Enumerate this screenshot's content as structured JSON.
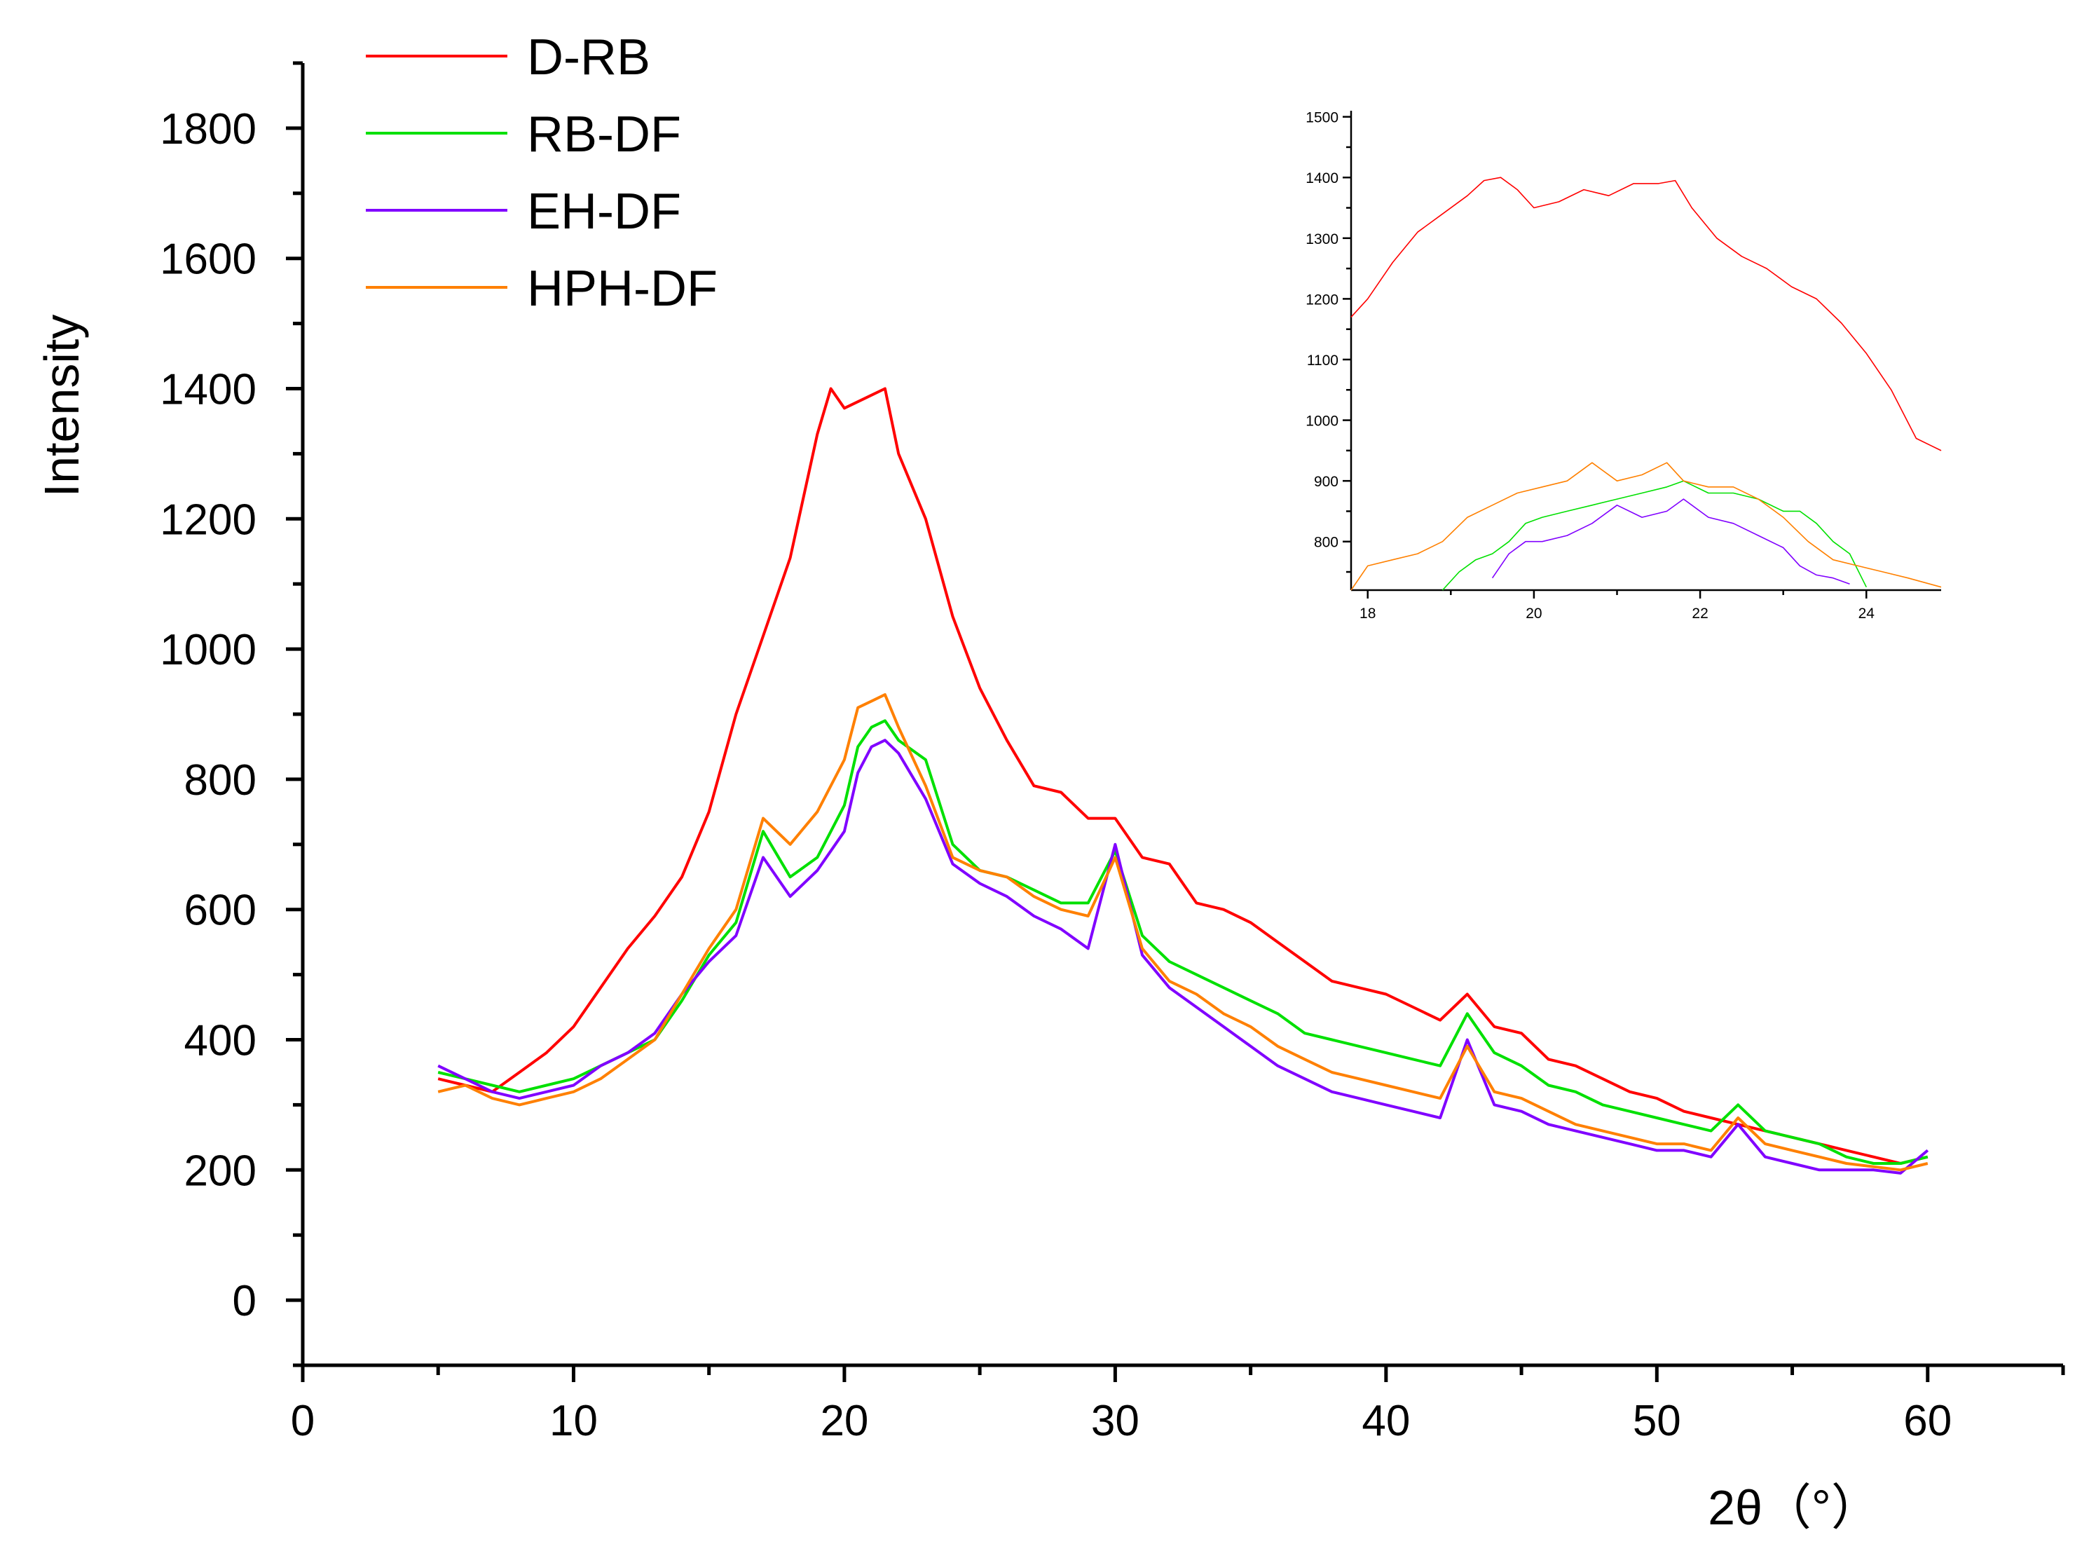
{
  "chart_data": [
    {
      "type": "line",
      "title": "",
      "xlabel": "2θ（°）",
      "ylabel": "Intensity",
      "xlim": [
        0,
        65
      ],
      "ylim": [
        -100,
        1900
      ],
      "x_ticks": [
        0,
        10,
        20,
        30,
        40,
        50,
        60
      ],
      "y_ticks": [
        0,
        200,
        400,
        600,
        800,
        1000,
        1200,
        1400,
        1600,
        1800
      ],
      "grid": false,
      "legend": "top-left",
      "series": [
        {
          "name": "D-RB",
          "color": "#ff0000",
          "x": [
            5,
            6,
            7,
            8,
            9,
            10,
            11,
            12,
            13,
            14,
            15,
            16,
            17,
            18,
            19,
            19.5,
            20,
            21,
            21.5,
            22,
            23,
            24,
            25,
            26,
            27,
            28,
            29,
            30,
            31,
            32,
            33,
            34,
            35,
            36,
            37,
            38,
            39,
            40,
            41,
            42,
            43,
            44,
            45,
            46,
            47,
            48,
            49,
            50,
            51,
            52,
            53,
            54,
            55,
            56,
            57,
            58,
            59,
            60
          ],
          "y": [
            340,
            330,
            320,
            350,
            380,
            420,
            480,
            540,
            590,
            650,
            750,
            900,
            1020,
            1140,
            1330,
            1400,
            1370,
            1390,
            1400,
            1300,
            1200,
            1050,
            940,
            860,
            790,
            780,
            740,
            740,
            680,
            670,
            610,
            600,
            580,
            550,
            520,
            490,
            480,
            470,
            450,
            430,
            470,
            420,
            410,
            370,
            360,
            340,
            320,
            310,
            290,
            280,
            270,
            260,
            250,
            240,
            230,
            220,
            210,
            220
          ]
        },
        {
          "name": "RB-DF",
          "color": "#00e000",
          "x": [
            5,
            6,
            7,
            8,
            9,
            10,
            11,
            12,
            13,
            14,
            15,
            16,
            17,
            18,
            19,
            20,
            20.5,
            21,
            21.5,
            22,
            23,
            24,
            25,
            26,
            27,
            28,
            29,
            30,
            31,
            32,
            33,
            34,
            35,
            36,
            37,
            38,
            39,
            40,
            41,
            42,
            43,
            44,
            45,
            46,
            47,
            48,
            49,
            50,
            51,
            52,
            53,
            54,
            55,
            56,
            57,
            58,
            59,
            60
          ],
          "y": [
            350,
            340,
            330,
            320,
            330,
            340,
            360,
            380,
            400,
            460,
            530,
            580,
            720,
            650,
            680,
            760,
            850,
            880,
            890,
            860,
            830,
            700,
            660,
            650,
            630,
            610,
            610,
            690,
            560,
            520,
            500,
            480,
            460,
            440,
            410,
            400,
            390,
            380,
            370,
            360,
            440,
            380,
            360,
            330,
            320,
            300,
            290,
            280,
            270,
            260,
            300,
            260,
            250,
            240,
            220,
            210,
            210,
            220
          ]
        },
        {
          "name": "EH-DF",
          "color": "#8000ff",
          "x": [
            5,
            6,
            7,
            8,
            9,
            10,
            11,
            12,
            13,
            14,
            15,
            16,
            17,
            18,
            19,
            20,
            20.5,
            21,
            21.5,
            22,
            23,
            24,
            25,
            26,
            27,
            28,
            29,
            30,
            31,
            32,
            33,
            34,
            35,
            36,
            37,
            38,
            39,
            40,
            41,
            42,
            43,
            44,
            45,
            46,
            47,
            48,
            49,
            50,
            51,
            52,
            53,
            54,
            55,
            56,
            57,
            58,
            59,
            60
          ],
          "y": [
            360,
            340,
            320,
            310,
            320,
            330,
            360,
            380,
            410,
            470,
            520,
            560,
            680,
            620,
            660,
            720,
            810,
            850,
            860,
            840,
            770,
            670,
            640,
            620,
            590,
            570,
            540,
            700,
            530,
            480,
            450,
            420,
            390,
            360,
            340,
            320,
            310,
            300,
            290,
            280,
            400,
            300,
            290,
            270,
            260,
            250,
            240,
            230,
            230,
            220,
            270,
            220,
            210,
            200,
            200,
            200,
            195,
            230
          ]
        },
        {
          "name": "HPH-DF",
          "color": "#ff8000",
          "x": [
            5,
            6,
            7,
            8,
            9,
            10,
            11,
            12,
            13,
            14,
            15,
            16,
            17,
            18,
            19,
            20,
            20.5,
            21,
            21.5,
            22,
            23,
            24,
            25,
            26,
            27,
            28,
            29,
            30,
            31,
            32,
            33,
            34,
            35,
            36,
            37,
            38,
            39,
            40,
            41,
            42,
            43,
            44,
            45,
            46,
            47,
            48,
            49,
            50,
            51,
            52,
            53,
            54,
            55,
            56,
            57,
            58,
            59,
            60
          ],
          "y": [
            320,
            330,
            310,
            300,
            310,
            320,
            340,
            370,
            400,
            470,
            540,
            600,
            740,
            700,
            750,
            830,
            910,
            920,
            930,
            880,
            790,
            680,
            660,
            650,
            620,
            600,
            590,
            680,
            540,
            490,
            470,
            440,
            420,
            390,
            370,
            350,
            340,
            330,
            320,
            310,
            390,
            320,
            310,
            290,
            270,
            260,
            250,
            240,
            240,
            230,
            280,
            240,
            230,
            220,
            210,
            205,
            200,
            210
          ]
        }
      ]
    },
    {
      "type": "line",
      "title": "",
      "xlabel": "",
      "ylabel": "",
      "xlim": [
        17.8,
        24.9
      ],
      "ylim": [
        720,
        1510
      ],
      "x_ticks": [
        18,
        20,
        22,
        24
      ],
      "y_ticks": [
        800,
        900,
        1000,
        1100,
        1200,
        1300,
        1400,
        1500
      ],
      "grid": false,
      "legend": "none",
      "series": [
        {
          "name": "D-RB",
          "color": "#ff0000",
          "x": [
            17.8,
            18,
            18.3,
            18.6,
            18.9,
            19.2,
            19.4,
            19.6,
            19.8,
            20.0,
            20.3,
            20.6,
            20.9,
            21.2,
            21.5,
            21.7,
            21.9,
            22.2,
            22.5,
            22.8,
            23.1,
            23.4,
            23.7,
            24.0,
            24.3,
            24.6,
            24.9
          ],
          "y": [
            1170,
            1200,
            1260,
            1310,
            1340,
            1370,
            1395,
            1400,
            1380,
            1350,
            1360,
            1380,
            1370,
            1390,
            1390,
            1395,
            1350,
            1300,
            1270,
            1250,
            1220,
            1200,
            1160,
            1110,
            1050,
            970,
            950
          ]
        },
        {
          "name": "RB-DF",
          "color": "#00e000",
          "x": [
            18.9,
            19.1,
            19.3,
            19.5,
            19.7,
            19.9,
            20.1,
            20.4,
            20.7,
            21.0,
            21.3,
            21.6,
            21.8,
            22.1,
            22.4,
            22.7,
            23.0,
            23.2,
            23.4,
            23.6,
            23.8,
            24.0
          ],
          "y": [
            720,
            750,
            770,
            780,
            800,
            830,
            840,
            850,
            860,
            870,
            880,
            890,
            900,
            880,
            880,
            870,
            850,
            850,
            830,
            800,
            780,
            725
          ]
        },
        {
          "name": "EH-DF",
          "color": "#8000ff",
          "x": [
            19.5,
            19.7,
            19.9,
            20.1,
            20.4,
            20.7,
            21.0,
            21.3,
            21.6,
            21.8,
            22.1,
            22.4,
            22.7,
            23.0,
            23.2,
            23.4,
            23.6,
            23.8
          ],
          "y": [
            740,
            780,
            800,
            800,
            810,
            830,
            860,
            840,
            850,
            870,
            840,
            830,
            810,
            790,
            760,
            745,
            740,
            730
          ]
        },
        {
          "name": "HPH-DF",
          "color": "#ff8000",
          "x": [
            17.8,
            18.0,
            18.3,
            18.6,
            18.9,
            19.2,
            19.5,
            19.8,
            20.1,
            20.4,
            20.7,
            21.0,
            21.3,
            21.6,
            21.8,
            22.1,
            22.4,
            22.7,
            23.0,
            23.3,
            23.6,
            23.9,
            24.2,
            24.5,
            24.9
          ],
          "y": [
            720,
            760,
            770,
            780,
            800,
            840,
            860,
            880,
            890,
            900,
            930,
            900,
            910,
            930,
            900,
            890,
            890,
            870,
            840,
            800,
            770,
            760,
            750,
            740,
            725
          ]
        }
      ]
    }
  ]
}
